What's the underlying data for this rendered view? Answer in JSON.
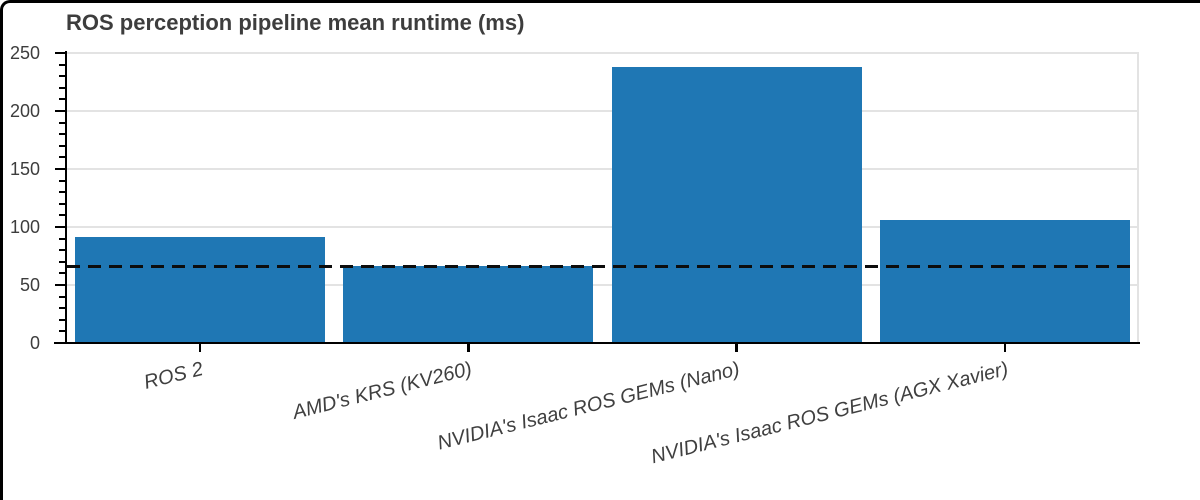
{
  "chart_data": {
    "type": "bar",
    "title": "ROS perception pipeline mean runtime (ms)",
    "categories": [
      "ROS 2",
      "AMD's KRS (KV260)",
      "NVIDIA's Isaac ROS GEMs (Nano)",
      "NVIDIA's Isaac ROS GEMs (AGX Xavier)"
    ],
    "values": [
      91,
      66,
      238,
      106
    ],
    "reference_line": 66,
    "xlabel": "",
    "ylabel": "",
    "ylim": [
      0,
      250
    ],
    "y_major_step": 50,
    "y_minor_step": 10,
    "y_tick_labels": [
      "0",
      "50",
      "100",
      "150",
      "200",
      "250"
    ],
    "grid": "horizontal-major",
    "legend": "none",
    "bar_color": "#1f77b4",
    "grid_color": "#e3e3e3",
    "axis_color": "#000000",
    "text_color": "#3d3d3d",
    "reference_line_style": "black-dashed"
  }
}
